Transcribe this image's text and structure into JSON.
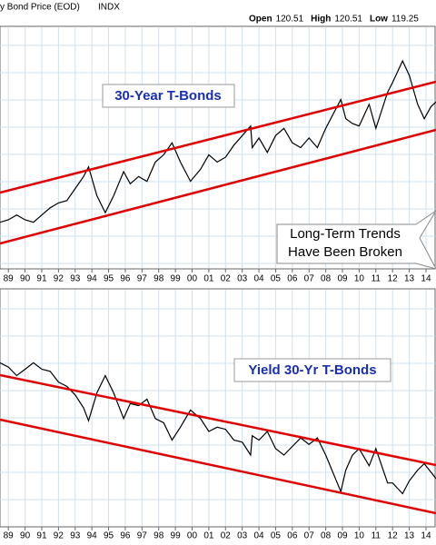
{
  "chart_data": [
    {
      "type": "line",
      "title": "y Bond Price (EOD)",
      "exchange": "INDX",
      "quote": [
        {
          "label": "Open",
          "value": 120.51
        },
        {
          "label": "High",
          "value": 120.51
        },
        {
          "label": "Low",
          "value": 119.25
        }
      ],
      "annotations": [
        "30-Year T-Bonds",
        "Long-Term Trends",
        "Have Been Broken"
      ],
      "color": "#000000",
      "x": [
        1988.5,
        1989,
        1989.5,
        1990,
        1990.5,
        1991,
        1991.5,
        1992,
        1992.5,
        1993,
        1993.5,
        1993.8,
        1994.3,
        1994.8,
        1995.3,
        1995.9,
        1996.3,
        1996.8,
        1997.3,
        1997.8,
        1998.3,
        1998.8,
        1999.3,
        1999.9,
        2000.5,
        2001,
        2001.5,
        2002,
        2002.5,
        2003,
        2003.5,
        2003.6,
        2004,
        2004.5,
        2005,
        2005.5,
        2006,
        2006.5,
        2007,
        2007.5,
        2008,
        2008.9,
        2009.2,
        2009.6,
        2010,
        2010.6,
        2011,
        2011.7,
        2012,
        2012.6,
        2013,
        2013.5,
        2013.9,
        2014.3,
        2014.6
      ],
      "values": [
        79,
        80,
        82,
        80,
        79,
        82,
        85,
        87,
        88,
        93,
        98,
        102,
        90,
        83,
        90,
        100,
        95,
        98,
        96,
        104,
        107,
        112,
        104,
        96,
        101,
        107,
        104,
        106,
        111,
        115,
        119,
        110,
        114,
        108,
        115,
        118,
        112,
        110,
        114,
        110,
        118,
        130,
        122,
        120,
        119,
        128,
        118,
        133,
        137,
        146,
        140,
        128,
        122,
        127,
        129
      ],
      "xlim": [
        1988.5,
        2014.6
      ],
      "ylim": [
        60,
        160
      ],
      "xticks": [
        {
          "value": 1989,
          "label": "89"
        },
        {
          "value": 1990,
          "label": "90"
        },
        {
          "value": 1991,
          "label": "91"
        },
        {
          "value": 1992,
          "label": "92"
        },
        {
          "value": 1993,
          "label": "93"
        },
        {
          "value": 1994,
          "label": "94"
        },
        {
          "value": 1995,
          "label": "95"
        },
        {
          "value": 1996,
          "label": "96"
        },
        {
          "value": 1997,
          "label": "97"
        },
        {
          "value": 1998,
          "label": "98"
        },
        {
          "value": 1999,
          "label": "99"
        },
        {
          "value": 2000,
          "label": "00"
        },
        {
          "value": 2001,
          "label": "01"
        },
        {
          "value": 2002,
          "label": "02"
        },
        {
          "value": 2003,
          "label": "03"
        },
        {
          "value": 2004,
          "label": "04"
        },
        {
          "value": 2005,
          "label": "05"
        },
        {
          "value": 2006,
          "label": "06"
        },
        {
          "value": 2007,
          "label": "07"
        },
        {
          "value": 2008,
          "label": "08"
        },
        {
          "value": 2009,
          "label": "09"
        },
        {
          "value": 2010,
          "label": "10"
        },
        {
          "value": 2011,
          "label": "11"
        },
        {
          "value": 2012,
          "label": "12"
        },
        {
          "value": 2013,
          "label": "13"
        },
        {
          "value": 2014,
          "label": "14"
        }
      ],
      "grid": true
    },
    {
      "type": "line",
      "annotations": [
        "Yield 30-Yr T-Bonds"
      ],
      "color": "#000000",
      "x": [
        1988.5,
        1989,
        1989.5,
        1990,
        1990.5,
        1991,
        1991.5,
        1992,
        1992.5,
        1993,
        1993.5,
        1993.8,
        1994.3,
        1994.8,
        1995.3,
        1995.9,
        1996.3,
        1996.8,
        1997.3,
        1997.8,
        1998.3,
        1998.8,
        1999.3,
        1999.9,
        2000.5,
        2001,
        2001.5,
        2002,
        2002.5,
        2003,
        2003.5,
        2003.6,
        2004,
        2004.5,
        2005,
        2005.5,
        2006,
        2006.5,
        2007,
        2007.5,
        2008,
        2008.9,
        2009.2,
        2009.6,
        2010,
        2010.6,
        2011,
        2011.7,
        2012,
        2012.6,
        2013,
        2013.5,
        2013.9,
        2014.3,
        2014.6
      ],
      "values": [
        8.6,
        8.4,
        8.0,
        8.3,
        8.6,
        8.3,
        8.2,
        7.7,
        7.5,
        7.1,
        6.5,
        5.9,
        7.2,
        8.0,
        7.2,
        6.0,
        6.7,
        6.6,
        6.9,
        6.0,
        5.8,
        5.0,
        5.6,
        6.4,
        6.0,
        5.4,
        5.6,
        5.5,
        5.0,
        4.9,
        4.3,
        5.2,
        5.0,
        5.4,
        4.6,
        4.3,
        4.7,
        5.1,
        4.8,
        5.1,
        4.3,
        2.6,
        3.6,
        4.3,
        4.6,
        3.8,
        4.6,
        3.0,
        3.0,
        2.5,
        3.1,
        3.6,
        3.9,
        3.5,
        3.2
      ],
      "xlim": [
        1988.5,
        2014.6
      ],
      "ylim": [
        1,
        12
      ],
      "xticks": [
        {
          "value": 1989,
          "label": "89"
        },
        {
          "value": 1990,
          "label": "90"
        },
        {
          "value": 1991,
          "label": "91"
        },
        {
          "value": 1992,
          "label": "92"
        },
        {
          "value": 1993,
          "label": "93"
        },
        {
          "value": 1994,
          "label": "94"
        },
        {
          "value": 1995,
          "label": "95"
        },
        {
          "value": 1996,
          "label": "96"
        },
        {
          "value": 1997,
          "label": "97"
        },
        {
          "value": 1998,
          "label": "98"
        },
        {
          "value": 1999,
          "label": "99"
        },
        {
          "value": 2000,
          "label": "00"
        },
        {
          "value": 2001,
          "label": "01"
        },
        {
          "value": 2002,
          "label": "02"
        },
        {
          "value": 2003,
          "label": "03"
        },
        {
          "value": 2004,
          "label": "04"
        },
        {
          "value": 2005,
          "label": "05"
        },
        {
          "value": 2006,
          "label": "06"
        },
        {
          "value": 2007,
          "label": "07"
        },
        {
          "value": 2008,
          "label": "08"
        },
        {
          "value": 2009,
          "label": "09"
        },
        {
          "value": 2010,
          "label": "10"
        },
        {
          "value": 2011,
          "label": "11"
        },
        {
          "value": 2012,
          "label": "12"
        },
        {
          "value": 2013,
          "label": "13"
        },
        {
          "value": 2014,
          "label": "14"
        }
      ],
      "grid": true
    }
  ]
}
